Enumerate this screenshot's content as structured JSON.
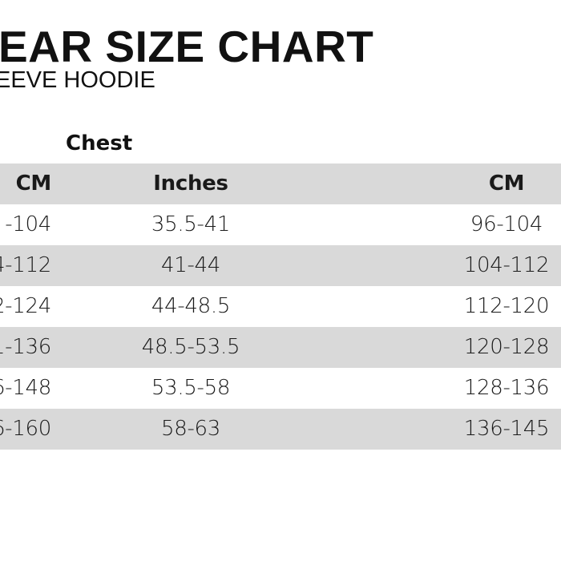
{
  "title": "EAR SIZE CHART",
  "subtitle": "EEVE HOODIE",
  "group_label": "Chest",
  "colors": {
    "band": "#d9d9d9",
    "text": "#1a1a1a"
  },
  "table": {
    "headers": [
      "CM",
      "Inches",
      "CM"
    ],
    "rows": [
      [
        "-104",
        "35.5-41",
        "96-104"
      ],
      [
        "4-112",
        "41-44",
        "104-112"
      ],
      [
        "2-124",
        "44-48.5",
        "112-120"
      ],
      [
        "1-136",
        "48.5-53.5",
        "120-128"
      ],
      [
        "6-148",
        "53.5-58",
        "128-136"
      ],
      [
        "6-160",
        "58-63",
        "136-145"
      ]
    ]
  }
}
